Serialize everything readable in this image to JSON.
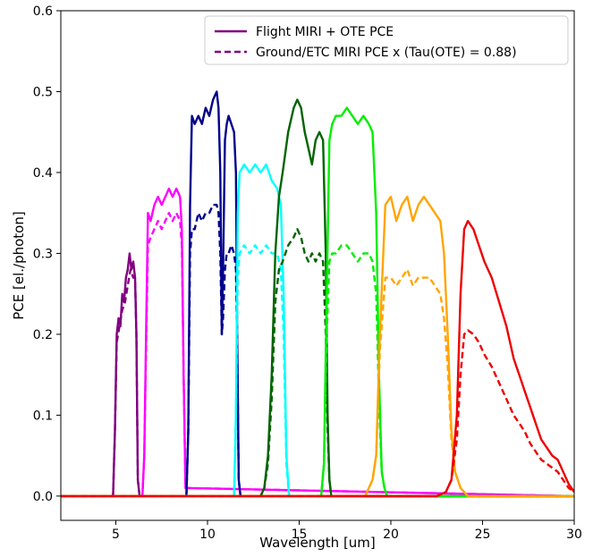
{
  "chart_data": {
    "type": "line",
    "title": "",
    "xlabel": "Wavelength [um]",
    "ylabel": "PCE [el./photon]",
    "xlim": [
      2,
      30
    ],
    "ylim": [
      -0.03,
      0.6
    ],
    "xticks": [
      5,
      10,
      15,
      20,
      25,
      30
    ],
    "yticks": [
      0.0,
      0.1,
      0.2,
      0.3,
      0.4,
      0.5,
      0.6
    ],
    "xtick_labels": [
      "5",
      "10",
      "15",
      "20",
      "25",
      "30"
    ],
    "ytick_labels": [
      "0.0",
      "0.1",
      "0.2",
      "0.3",
      "0.4",
      "0.5",
      "0.6"
    ],
    "grid": false,
    "legend": {
      "position": "top-right",
      "entries": [
        {
          "label": "Flight MIRI + OTE PCE",
          "style": "solid",
          "color": "#800080"
        },
        {
          "label": "Ground/ETC MIRI PCE x (Tau(OTE) = 0.88)",
          "style": "dashed",
          "color": "#800080"
        }
      ]
    },
    "series": [
      {
        "color": "#800080",
        "style": "solid",
        "x": [
          2,
          4.85,
          4.95,
          5.05,
          5.15,
          5.25,
          5.35,
          5.45,
          5.55,
          5.65,
          5.75,
          5.85,
          5.95,
          6.05,
          6.12,
          6.2,
          6.3,
          30
        ],
        "y": [
          0,
          0,
          0.08,
          0.2,
          0.22,
          0.21,
          0.25,
          0.24,
          0.27,
          0.28,
          0.3,
          0.28,
          0.29,
          0.27,
          0.2,
          0.02,
          0,
          0
        ]
      },
      {
        "color": "#800080",
        "style": "dashed",
        "x": [
          2,
          4.85,
          4.95,
          5.05,
          5.2,
          5.35,
          5.5,
          5.65,
          5.8,
          5.95,
          6.05,
          6.12,
          6.2,
          6.3,
          30
        ],
        "y": [
          0,
          0,
          0.08,
          0.19,
          0.21,
          0.23,
          0.24,
          0.26,
          0.28,
          0.27,
          0.27,
          0.2,
          0.02,
          0,
          0
        ]
      },
      {
        "color": "#ff00ff",
        "style": "solid",
        "x": [
          2,
          6.45,
          6.55,
          6.65,
          6.75,
          6.9,
          7.1,
          7.3,
          7.5,
          7.7,
          7.9,
          8.1,
          8.3,
          8.5,
          8.6,
          8.7,
          8.8,
          30
        ],
        "y": [
          0,
          0,
          0.05,
          0.2,
          0.35,
          0.34,
          0.36,
          0.37,
          0.36,
          0.37,
          0.38,
          0.37,
          0.38,
          0.37,
          0.33,
          0.15,
          0.01,
          0
        ]
      },
      {
        "color": "#ff00ff",
        "style": "dashed",
        "x": [
          2,
          6.45,
          6.55,
          6.65,
          6.75,
          6.9,
          7.1,
          7.3,
          7.5,
          7.7,
          7.9,
          8.1,
          8.3,
          8.5,
          8.6,
          8.7,
          8.8,
          30
        ],
        "y": [
          0,
          0,
          0.05,
          0.18,
          0.31,
          0.32,
          0.33,
          0.34,
          0.33,
          0.34,
          0.35,
          0.34,
          0.35,
          0.34,
          0.31,
          0.15,
          0.01,
          0
        ]
      },
      {
        "color": "#00008b",
        "style": "solid",
        "x": [
          2,
          8.85,
          8.95,
          9.05,
          9.15,
          9.3,
          9.5,
          9.7,
          9.9,
          10.1,
          10.3,
          10.5,
          10.6,
          10.7,
          10.78,
          10.85,
          10.95,
          11.05,
          11.15,
          11.3,
          11.45,
          11.55,
          11.62,
          11.7,
          11.8,
          30
        ],
        "y": [
          0,
          0,
          0.08,
          0.36,
          0.47,
          0.46,
          0.47,
          0.46,
          0.48,
          0.47,
          0.49,
          0.5,
          0.48,
          0.4,
          0.2,
          0.28,
          0.44,
          0.46,
          0.47,
          0.46,
          0.45,
          0.4,
          0.2,
          0.02,
          0,
          0
        ]
      },
      {
        "color": "#00008b",
        "style": "dashed",
        "x": [
          2,
          8.85,
          8.95,
          9.05,
          9.15,
          9.3,
          9.5,
          9.7,
          9.9,
          10.1,
          10.3,
          10.5,
          10.6,
          10.7,
          10.78,
          10.85,
          10.95,
          11.05,
          11.15,
          11.3,
          11.45,
          11.55,
          11.62,
          11.7,
          11.8,
          30
        ],
        "y": [
          0,
          0,
          0.08,
          0.3,
          0.33,
          0.33,
          0.35,
          0.34,
          0.35,
          0.35,
          0.36,
          0.36,
          0.35,
          0.3,
          0.2,
          0.22,
          0.28,
          0.3,
          0.3,
          0.31,
          0.3,
          0.28,
          0.18,
          0.02,
          0,
          0
        ]
      },
      {
        "color": "#00ffff",
        "style": "solid",
        "x": [
          2,
          11.45,
          11.55,
          11.65,
          11.75,
          12.0,
          12.3,
          12.6,
          12.9,
          13.2,
          13.5,
          13.8,
          14.0,
          14.15,
          14.3,
          14.45,
          30
        ],
        "y": [
          0,
          0,
          0.1,
          0.35,
          0.4,
          0.41,
          0.4,
          0.41,
          0.4,
          0.41,
          0.39,
          0.38,
          0.36,
          0.25,
          0.05,
          0,
          0
        ]
      },
      {
        "color": "#00ffff",
        "style": "dashed",
        "x": [
          2,
          11.45,
          11.55,
          11.65,
          11.75,
          12.0,
          12.3,
          12.6,
          12.9,
          13.2,
          13.5,
          13.8,
          14.0,
          14.15,
          14.3,
          14.45,
          30
        ],
        "y": [
          0,
          0,
          0.1,
          0.27,
          0.3,
          0.31,
          0.3,
          0.31,
          0.3,
          0.31,
          0.3,
          0.3,
          0.28,
          0.2,
          0.04,
          0,
          0
        ]
      },
      {
        "color": "#006400",
        "style": "solid",
        "x": [
          2,
          12.9,
          13.1,
          13.3,
          13.5,
          13.7,
          13.9,
          14.1,
          14.4,
          14.7,
          14.9,
          15.1,
          15.3,
          15.5,
          15.7,
          15.9,
          16.1,
          16.3,
          16.45,
          16.55,
          16.65,
          16.75,
          30
        ],
        "y": [
          0,
          0,
          0.01,
          0.05,
          0.15,
          0.3,
          0.37,
          0.4,
          0.45,
          0.48,
          0.49,
          0.48,
          0.45,
          0.43,
          0.41,
          0.44,
          0.45,
          0.44,
          0.3,
          0.1,
          0.02,
          0,
          0
        ]
      },
      {
        "color": "#006400",
        "style": "dashed",
        "x": [
          2,
          12.9,
          13.1,
          13.3,
          13.5,
          13.7,
          13.9,
          14.1,
          14.4,
          14.7,
          14.9,
          15.1,
          15.3,
          15.5,
          15.7,
          15.9,
          16.1,
          16.3,
          16.45,
          16.55,
          16.65,
          16.75,
          30
        ],
        "y": [
          0,
          0,
          0.01,
          0.04,
          0.12,
          0.24,
          0.28,
          0.29,
          0.31,
          0.32,
          0.33,
          0.32,
          0.3,
          0.29,
          0.3,
          0.29,
          0.3,
          0.29,
          0.2,
          0.08,
          0.02,
          0,
          0
        ]
      },
      {
        "color": "#00ee00",
        "style": "solid",
        "x": [
          2,
          16.2,
          16.35,
          16.5,
          16.65,
          16.8,
          17.0,
          17.3,
          17.6,
          17.9,
          18.2,
          18.5,
          18.8,
          19.0,
          19.2,
          19.35,
          19.5,
          19.65,
          19.8,
          30
        ],
        "y": [
          0,
          0,
          0.04,
          0.25,
          0.44,
          0.46,
          0.47,
          0.47,
          0.48,
          0.47,
          0.46,
          0.47,
          0.46,
          0.45,
          0.35,
          0.15,
          0.03,
          0.01,
          0,
          0
        ]
      },
      {
        "color": "#00ee00",
        "style": "dashed",
        "x": [
          2,
          16.2,
          16.35,
          16.5,
          16.65,
          16.8,
          17.0,
          17.3,
          17.6,
          17.9,
          18.2,
          18.5,
          18.8,
          19.0,
          19.2,
          19.35,
          19.5,
          19.65,
          19.8,
          30
        ],
        "y": [
          0,
          0,
          0.04,
          0.2,
          0.29,
          0.3,
          0.3,
          0.31,
          0.31,
          0.3,
          0.29,
          0.3,
          0.3,
          0.29,
          0.25,
          0.12,
          0.03,
          0.01,
          0,
          0
        ]
      },
      {
        "color": "#ffa500",
        "style": "solid",
        "x": [
          2,
          18.6,
          18.8,
          19.0,
          19.2,
          19.4,
          19.7,
          20.0,
          20.3,
          20.6,
          20.9,
          21.2,
          21.5,
          21.8,
          22.1,
          22.4,
          22.7,
          22.9,
          23.1,
          23.3,
          23.5,
          23.8,
          24.2,
          30
        ],
        "y": [
          0,
          0,
          0.01,
          0.02,
          0.05,
          0.2,
          0.36,
          0.37,
          0.34,
          0.36,
          0.37,
          0.34,
          0.36,
          0.37,
          0.36,
          0.35,
          0.34,
          0.3,
          0.2,
          0.08,
          0.03,
          0.01,
          0,
          0
        ]
      },
      {
        "color": "#ffa500",
        "style": "dashed",
        "x": [
          2,
          18.6,
          18.8,
          19.0,
          19.2,
          19.4,
          19.7,
          20.0,
          20.3,
          20.6,
          20.9,
          21.2,
          21.5,
          21.8,
          22.1,
          22.4,
          22.7,
          22.9,
          23.1,
          23.3,
          23.5,
          23.8,
          24.2,
          30
        ],
        "y": [
          0,
          0,
          0.01,
          0.02,
          0.05,
          0.18,
          0.27,
          0.27,
          0.26,
          0.27,
          0.28,
          0.26,
          0.27,
          0.27,
          0.27,
          0.26,
          0.25,
          0.22,
          0.16,
          0.07,
          0.03,
          0.01,
          0,
          0
        ]
      },
      {
        "color": "#ee0000",
        "style": "solid",
        "x": [
          2,
          22.5,
          23.0,
          23.3,
          23.6,
          23.8,
          24.0,
          24.2,
          24.5,
          24.8,
          25.1,
          25.5,
          25.9,
          26.3,
          26.7,
          27.0,
          27.3,
          27.6,
          27.9,
          28.2,
          28.5,
          28.8,
          29.1,
          29.4,
          29.7,
          30.0
        ],
        "y": [
          0,
          0,
          0.005,
          0.02,
          0.1,
          0.25,
          0.33,
          0.34,
          0.33,
          0.31,
          0.29,
          0.27,
          0.24,
          0.21,
          0.17,
          0.15,
          0.13,
          0.11,
          0.09,
          0.07,
          0.06,
          0.05,
          0.045,
          0.03,
          0.015,
          0.005
        ]
      },
      {
        "color": "#ee0000",
        "style": "dashed",
        "x": [
          2,
          22.5,
          23.0,
          23.3,
          23.6,
          23.8,
          24.0,
          24.2,
          24.5,
          24.8,
          25.1,
          25.5,
          25.9,
          26.3,
          26.7,
          27.0,
          27.3,
          27.6,
          27.9,
          28.2,
          28.5,
          28.8,
          29.1,
          29.4,
          29.7,
          30.0
        ],
        "y": [
          0,
          0,
          0.005,
          0.02,
          0.07,
          0.15,
          0.2,
          0.205,
          0.2,
          0.19,
          0.175,
          0.16,
          0.14,
          0.12,
          0.1,
          0.09,
          0.08,
          0.065,
          0.055,
          0.045,
          0.04,
          0.035,
          0.03,
          0.02,
          0.01,
          0.005
        ]
      }
    ]
  }
}
